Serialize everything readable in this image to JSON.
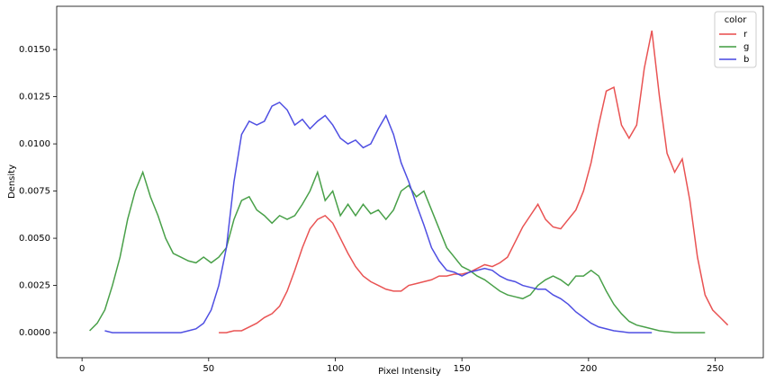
{
  "chart_data": {
    "type": "line",
    "x_label": "Pixel Intensity",
    "y_label": "Density",
    "x": [
      3,
      6,
      9,
      12,
      15,
      18,
      21,
      24,
      27,
      30,
      33,
      36,
      39,
      42,
      45,
      48,
      51,
      54,
      57,
      60,
      63,
      66,
      69,
      72,
      75,
      78,
      81,
      84,
      87,
      90,
      93,
      96,
      99,
      102,
      105,
      108,
      111,
      114,
      117,
      120,
      123,
      126,
      129,
      132,
      135,
      138,
      141,
      144,
      147,
      150,
      153,
      156,
      159,
      162,
      165,
      168,
      171,
      174,
      177,
      180,
      183,
      186,
      189,
      192,
      195,
      198,
      201,
      204,
      207,
      210,
      213,
      216,
      219,
      222,
      225,
      228,
      231,
      234,
      237,
      240,
      243,
      246,
      249,
      252,
      255
    ],
    "series": [
      {
        "name": "r",
        "color": "#e84a4a",
        "values": [
          null,
          null,
          null,
          null,
          null,
          null,
          null,
          null,
          null,
          null,
          null,
          null,
          null,
          null,
          null,
          null,
          null,
          0,
          0,
          0.0001,
          0.0001,
          0.0003,
          0.0005,
          0.0008,
          0.001,
          0.0014,
          0.0022,
          0.0033,
          0.0045,
          0.0055,
          0.006,
          0.0062,
          0.0058,
          0.005,
          0.0042,
          0.0035,
          0.003,
          0.0027,
          0.0025,
          0.0023,
          0.0022,
          0.0022,
          0.0025,
          0.0026,
          0.0027,
          0.0028,
          0.003,
          0.003,
          0.0031,
          0.0031,
          0.0032,
          0.0034,
          0.0036,
          0.0035,
          0.0037,
          0.004,
          0.0048,
          0.0056,
          0.0062,
          0.0068,
          0.006,
          0.0056,
          0.0055,
          0.006,
          0.0065,
          0.0075,
          0.009,
          0.011,
          0.0128,
          0.013,
          0.011,
          0.0103,
          0.011,
          0.014,
          0.016,
          0.0125,
          0.0095,
          0.0085,
          0.0092,
          0.007,
          0.004,
          0.002,
          0.0012,
          0.0008,
          0.0004
        ]
      },
      {
        "name": "g",
        "color": "#3f9b3f",
        "values": [
          0.0001,
          0.0005,
          0.0012,
          0.0025,
          0.004,
          0.006,
          0.0075,
          0.0085,
          0.0072,
          0.0062,
          0.005,
          0.0042,
          0.004,
          0.0038,
          0.0037,
          0.004,
          0.0037,
          0.004,
          0.0045,
          0.006,
          0.007,
          0.0072,
          0.0065,
          0.0062,
          0.0058,
          0.0062,
          0.006,
          0.0062,
          0.0068,
          0.0075,
          0.0085,
          0.007,
          0.0075,
          0.0062,
          0.0068,
          0.0062,
          0.0068,
          0.0063,
          0.0065,
          0.006,
          0.0065,
          0.0075,
          0.0078,
          0.0072,
          0.0075,
          0.0065,
          0.0055,
          0.0045,
          0.004,
          0.0035,
          0.0033,
          0.003,
          0.0028,
          0.0025,
          0.0022,
          0.002,
          0.0019,
          0.0018,
          0.002,
          0.0025,
          0.0028,
          0.003,
          0.0028,
          0.0025,
          0.003,
          0.003,
          0.0033,
          0.003,
          0.0022,
          0.0015,
          0.001,
          0.0006,
          0.0004,
          0.0003,
          0.0002,
          0.0001,
          5e-05,
          0,
          0,
          0,
          0,
          0,
          null,
          null,
          null
        ]
      },
      {
        "name": "b",
        "color": "#4646e0",
        "values": [
          null,
          null,
          0.0001,
          0,
          0,
          0,
          0,
          0,
          0,
          0,
          0,
          0,
          0,
          0.0001,
          0.0002,
          0.0005,
          0.0012,
          0.0025,
          0.0045,
          0.008,
          0.0105,
          0.0112,
          0.011,
          0.0112,
          0.012,
          0.0122,
          0.0118,
          0.011,
          0.0113,
          0.0108,
          0.0112,
          0.0115,
          0.011,
          0.0103,
          0.01,
          0.0102,
          0.0098,
          0.01,
          0.0108,
          0.0115,
          0.0105,
          0.009,
          0.008,
          0.0068,
          0.0057,
          0.0045,
          0.0038,
          0.0033,
          0.0032,
          0.003,
          0.0032,
          0.0033,
          0.0034,
          0.0033,
          0.003,
          0.0028,
          0.0027,
          0.0025,
          0.0024,
          0.0023,
          0.0023,
          0.002,
          0.0018,
          0.0015,
          0.0011,
          0.0008,
          0.0005,
          0.0003,
          0.0002,
          0.0001,
          5e-05,
          0,
          0,
          0,
          0,
          null,
          null,
          null,
          null,
          null,
          null,
          null,
          null,
          null,
          null
        ]
      }
    ],
    "xlim": [
      -10,
      269
    ],
    "ylim": [
      -0.00133,
      0.01729
    ],
    "xticks": [
      0,
      50,
      100,
      150,
      200,
      250
    ],
    "yticks": [
      {
        "value": 0,
        "label": "0.0000"
      },
      {
        "value": 0.0025,
        "label": "0.0025"
      },
      {
        "value": 0.005,
        "label": "0.0050"
      },
      {
        "value": 0.0075,
        "label": "0.0075"
      },
      {
        "value": 0.01,
        "label": "0.0100"
      },
      {
        "value": 0.0125,
        "label": "0.0125"
      },
      {
        "value": 0.015,
        "label": "0.0150"
      }
    ],
    "legend_title": "color",
    "legend_position": "upper right",
    "grid": false
  }
}
